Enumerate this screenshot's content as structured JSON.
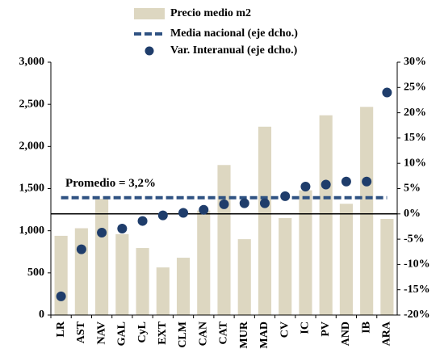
{
  "chart_data": {
    "type": "bar_line_scatter",
    "categories": [
      "LR",
      "AST",
      "NAV",
      "GAL",
      "CyL",
      "EXT",
      "CLM",
      "CAN",
      "CAT",
      "MUR",
      "MAD",
      "CV",
      "IC",
      "PV",
      "AND",
      "IB",
      "ARA"
    ],
    "series": [
      {
        "name": "Precio medio m2",
        "type": "bar",
        "color": "#ddd7c1",
        "values": [
          940,
          1030,
          1380,
          960,
          795,
          565,
          680,
          1240,
          1780,
          900,
          2235,
          1150,
          1480,
          2370,
          1320,
          2470,
          1140
        ]
      },
      {
        "name": "Media nacional (eje dcho.)",
        "type": "hline",
        "color": "#2f5282",
        "axis": "y2",
        "value": 3.2
      },
      {
        "name": "Var. Interanual (eje dcho.)",
        "type": "scatter",
        "color": "#1f3d6b",
        "axis": "y2",
        "values": [
          -16.3,
          -7.0,
          -3.7,
          -2.9,
          -1.4,
          -0.3,
          0.2,
          0.8,
          1.9,
          2.1,
          2.1,
          3.5,
          5.4,
          5.8,
          6.4,
          6.4,
          24.0
        ]
      }
    ],
    "annotation": "Promedio = 3,2%",
    "zero_line": 0,
    "ylim": [
      0,
      3000
    ],
    "yticks": [
      0,
      500,
      {
        "value": 1000,
        "label": "1,000"
      },
      {
        "value": 1500,
        "label": "1,500"
      },
      {
        "value": 2000,
        "label": "2,000"
      },
      {
        "value": 2500,
        "label": "2,500"
      },
      {
        "value": 3000,
        "label": "3,000"
      }
    ],
    "y2lim": [
      -20,
      30
    ],
    "y2ticks": [
      {
        "value": -20,
        "label": "-20%"
      },
      {
        "value": -15,
        "label": "-15%"
      },
      {
        "value": -10,
        "label": "-10%"
      },
      {
        "value": -5,
        "label": "-5%"
      },
      {
        "value": 0,
        "label": "0%"
      },
      {
        "value": 5,
        "label": "5%"
      },
      {
        "value": 10,
        "label": "10%"
      },
      {
        "value": 15,
        "label": "15%"
      },
      {
        "value": 20,
        "label": "20%"
      },
      {
        "value": 25,
        "label": "25%"
      },
      {
        "value": 30,
        "label": "30%"
      }
    ]
  }
}
